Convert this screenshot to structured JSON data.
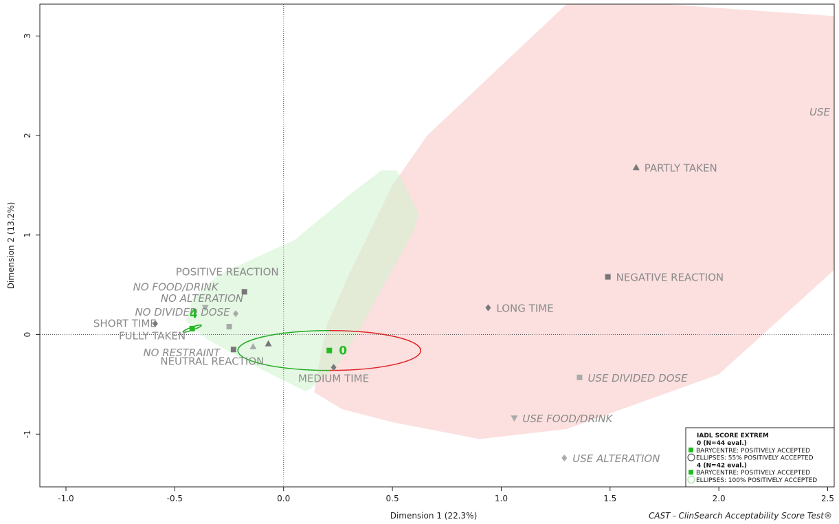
{
  "chart_data": {
    "type": "scatter",
    "xlabel": "Dimension 1 (22.3%)",
    "ylabel": "Dimension 2 (13.2%)",
    "xlim": [
      -1.12,
      2.53
    ],
    "ylim": [
      -1.53,
      3.32
    ],
    "x_ticks": [
      -1.0,
      -0.5,
      0.0,
      0.5,
      1.0,
      1.5,
      2.0,
      2.5
    ],
    "x_tick_labels": [
      "-1.0",
      "-0.5",
      "0.0",
      "0.5",
      "1.0",
      "1.5",
      "2.0",
      "2.5"
    ],
    "y_ticks": [
      -1,
      0,
      1,
      2,
      3
    ],
    "y_tick_labels": [
      "-1",
      "0",
      "1",
      "2",
      "3"
    ],
    "reference_lines": {
      "x": 0,
      "y": 0
    },
    "caption": "CAST - ClinSearch Acceptability Score Test®",
    "regions": [
      {
        "group": "0",
        "color": "#f9c5c5",
        "points": [
          [
            0.14,
            -0.58
          ],
          [
            0.27,
            -0.75
          ],
          [
            0.5,
            -0.88
          ],
          [
            0.9,
            -1.05
          ],
          [
            1.3,
            -0.95
          ],
          [
            2.0,
            -0.4
          ],
          [
            2.53,
            0.65
          ],
          [
            2.53,
            3.2
          ],
          [
            1.75,
            3.32
          ],
          [
            1.3,
            3.32
          ],
          [
            0.66,
            2.0
          ],
          [
            0.5,
            1.5
          ],
          [
            0.3,
            0.6
          ],
          [
            0.2,
            0.1
          ],
          [
            0.17,
            -0.2
          ]
        ]
      },
      {
        "group": "4",
        "color": "#cdf2cd",
        "points": [
          [
            -0.45,
            0.14
          ],
          [
            -0.42,
            0.35
          ],
          [
            -0.3,
            0.6
          ],
          [
            0.05,
            0.95
          ],
          [
            0.3,
            1.4
          ],
          [
            0.45,
            1.65
          ],
          [
            0.52,
            1.65
          ],
          [
            0.62,
            1.22
          ],
          [
            0.6,
            1.05
          ],
          [
            0.35,
            0.05
          ],
          [
            0.25,
            -0.3
          ],
          [
            0.12,
            -0.55
          ],
          [
            0.1,
            -0.57
          ],
          [
            -0.1,
            -0.35
          ],
          [
            -0.35,
            -0.05
          ]
        ]
      }
    ],
    "variables": [
      {
        "label": "PARTLY TAKEN",
        "x": 1.62,
        "y": 1.68,
        "marker": "triangle",
        "color": "#777777",
        "italic": false
      },
      {
        "label": "NEGATIVE REACTION",
        "x": 1.49,
        "y": 0.58,
        "marker": "square",
        "color": "#777777",
        "italic": false
      },
      {
        "label": "LONG TIME",
        "x": 0.94,
        "y": 0.27,
        "marker": "diamond",
        "color": "#777777",
        "italic": false
      },
      {
        "label": "USE DIVIDED DOSE",
        "x": 1.36,
        "y": -0.43,
        "marker": "square",
        "color": "#aaaaaa",
        "italic": true
      },
      {
        "label": "USE FOOD/DRINK",
        "x": 1.06,
        "y": -0.84,
        "marker": "triangle-down",
        "color": "#aaaaaa",
        "italic": true
      },
      {
        "label": "USE ALTERATION",
        "x": 1.29,
        "y": -1.24,
        "marker": "diamond",
        "color": "#aaaaaa",
        "italic": true
      },
      {
        "label": "USE",
        "x": 2.6,
        "y": 2.2,
        "marker": "none",
        "color": "#aaaaaa",
        "italic": true
      },
      {
        "label": "MEDIUM TIME",
        "x": 0.23,
        "y": -0.33,
        "marker": "diamond",
        "color": "#777777",
        "italic": false
      },
      {
        "label": "POSITIVE REACTION",
        "x": -0.18,
        "y": 0.43,
        "marker": "square",
        "color": "#777777",
        "italic": false
      },
      {
        "label": "NO FOOD/DRINK",
        "x": -0.36,
        "y": 0.27,
        "marker": "triangle-down",
        "color": "#aaaaaa",
        "italic": true
      },
      {
        "label": "NO ALTERATION",
        "x": -0.22,
        "y": 0.21,
        "marker": "diamond",
        "color": "#aaaaaa",
        "italic": true
      },
      {
        "label": "NO DIVIDED DOSE",
        "x": -0.25,
        "y": 0.08,
        "marker": "square",
        "color": "#aaaaaa",
        "italic": true
      },
      {
        "label": "SHORT TIME",
        "x": -0.59,
        "y": 0.11,
        "marker": "diamond",
        "color": "#777777",
        "italic": false
      },
      {
        "label": "FULLY TAKEN",
        "x": -0.07,
        "y": -0.09,
        "marker": "triangle",
        "color": "#777777",
        "italic": false
      },
      {
        "label": "NO RESTRAINT",
        "x": -0.14,
        "y": -0.12,
        "marker": "triangle",
        "color": "#aaaaaa",
        "italic": true
      },
      {
        "label": "NEUTRAL REACTION",
        "x": -0.23,
        "y": -0.15,
        "marker": "square",
        "color": "#777777",
        "italic": false
      }
    ],
    "barycentres": [
      {
        "label": "0",
        "x": 0.21,
        "y": -0.16,
        "color": "#22bb22"
      },
      {
        "label": "4",
        "x": -0.42,
        "y": 0.06,
        "color": "#22bb22"
      }
    ],
    "ellipses": [
      {
        "group": "0",
        "cx": 0.21,
        "cy": -0.16,
        "rx": 0.42,
        "ry": 0.2,
        "color_left": "#22aa22",
        "color_right": "#dd2222"
      },
      {
        "group": "4",
        "cx": -0.42,
        "cy": 0.06,
        "rx": 0.045,
        "ry": 0.015,
        "rotation": 20,
        "color_left": "#22aa22",
        "color_right": "#22aa22"
      }
    ],
    "legend": {
      "position": "bottom-right",
      "title": "IADL SCORE EXTREM",
      "entries": [
        {
          "text": "0 (N=44 eval.)",
          "symbol": "none",
          "bold": true
        },
        {
          "text": "BARYCENTRE: POSITIVELY ACCEPTED",
          "symbol": "square",
          "color": "#22bb22"
        },
        {
          "text": "ELLIPSES: 55% POSITIVELY ACCEPTED",
          "symbol": "circle",
          "color": "#333333"
        },
        {
          "text": "4 (N=42 eval.)",
          "symbol": "none",
          "bold": true
        },
        {
          "text": "BARYCENTRE: POSITIVELY ACCEPTED",
          "symbol": "square",
          "color": "#22bb22"
        },
        {
          "text": "ELLIPSES: 100% POSITIVELY ACCEPTED",
          "symbol": "circle",
          "color": "#99dd99"
        }
      ]
    }
  }
}
